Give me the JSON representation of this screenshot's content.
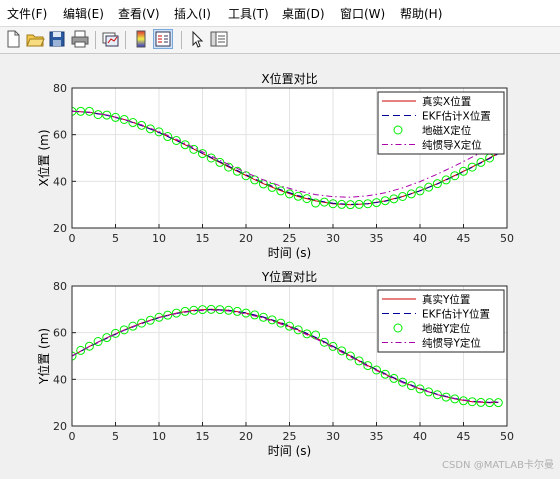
{
  "menu": [
    "文件(F)",
    "编辑(E)",
    "查看(V)",
    "插入(I)",
    "工具(T)",
    "桌面(D)",
    "窗口(W)",
    "帮助(H)"
  ],
  "toolbar_icons": [
    "new-file-icon",
    "open-folder-icon",
    "save-icon",
    "print-icon",
    "link-plot-icon",
    "colorbar-icon",
    "legend-icon",
    "pointer-icon",
    "property-editor-icon"
  ],
  "watermark": "CSDN @MATLAB卡尔曼",
  "chart_data": [
    {
      "type": "line",
      "title": "X位置对比",
      "xlabel": "时间 (s)",
      "ylabel": "X位置 (m)",
      "xlim": [
        0,
        50
      ],
      "ylim": [
        20,
        80
      ],
      "xticks": [
        0,
        5,
        10,
        15,
        20,
        25,
        30,
        35,
        40,
        45,
        50
      ],
      "yticks": [
        20,
        40,
        60,
        80
      ],
      "grid": true,
      "legend_position": "top-right",
      "colors": {
        "true": "#cc0000",
        "ekf": "#000099",
        "gps": "#00ee00",
        "ins": "#aa00aa"
      },
      "series": [
        {
          "name": "真实X位置",
          "style": "solid",
          "x": [
            0,
            2,
            4,
            6,
            8,
            10,
            12,
            14,
            16,
            18,
            20,
            22,
            24,
            26,
            28,
            30,
            32,
            34,
            36,
            38,
            40,
            42,
            44,
            46,
            48,
            49
          ],
          "y": [
            70,
            69.6,
            68.4,
            66.5,
            64,
            61,
            57.5,
            53.8,
            50,
            46.2,
            42.5,
            39,
            36,
            33.5,
            31.6,
            30.4,
            30,
            30.4,
            31.6,
            33.5,
            36,
            39,
            42.5,
            46.2,
            50,
            52
          ]
        },
        {
          "name": "EKF估计X位置",
          "style": "dashed",
          "x": [
            0,
            2,
            4,
            6,
            8,
            10,
            12,
            14,
            16,
            18,
            20,
            22,
            24,
            26,
            28,
            30,
            32,
            34,
            36,
            38,
            40,
            42,
            44,
            46,
            48,
            49
          ],
          "y": [
            70,
            69.5,
            68.3,
            66.4,
            63.9,
            60.9,
            57.5,
            53.9,
            50.2,
            46.5,
            42.8,
            39.4,
            36.4,
            33.9,
            31.9,
            30.6,
            30.1,
            30.4,
            31.5,
            33.4,
            35.9,
            38.9,
            42.3,
            46,
            49.8,
            51.8
          ]
        },
        {
          "name": "地磁X定位",
          "style": "markers",
          "x": [
            0,
            1,
            2,
            3,
            4,
            5,
            6,
            7,
            8,
            9,
            10,
            11,
            12,
            13,
            14,
            15,
            16,
            17,
            18,
            19,
            20,
            21,
            22,
            23,
            24,
            25,
            26,
            27,
            28,
            29,
            30,
            31,
            32,
            33,
            34,
            35,
            36,
            37,
            38,
            39,
            40,
            41,
            42,
            43,
            44,
            45,
            46,
            47,
            48,
            49
          ],
          "y": [
            70,
            70,
            70,
            68.6,
            68.4,
            67.4,
            66.5,
            65.2,
            64,
            62.5,
            61.2,
            59.2,
            57.5,
            55.7,
            53.7,
            51.9,
            50,
            48.1,
            46.1,
            44.3,
            42.4,
            40.6,
            38.9,
            37.4,
            35.9,
            34.6,
            33.6,
            32.6,
            30.7,
            31.1,
            30.4,
            30.1,
            30,
            30.1,
            30.4,
            30.9,
            31.7,
            32.5,
            33.5,
            34.6,
            35.9,
            37.5,
            39,
            40.6,
            42.4,
            44.3,
            46.1,
            48.1,
            50,
            54
          ]
        },
        {
          "name": "纯惯导X定位",
          "style": "dashdot",
          "x": [
            0,
            2,
            4,
            6,
            8,
            10,
            12,
            14,
            16,
            18,
            20,
            22,
            24,
            26,
            28,
            30,
            32,
            34,
            36,
            38,
            40,
            42,
            44,
            46,
            48,
            49
          ],
          "y": [
            70,
            69.6,
            68.5,
            66.6,
            64.2,
            61.3,
            58,
            54.5,
            50.8,
            47.2,
            43.8,
            40.6,
            38,
            35.9,
            34.3,
            33.4,
            33.2,
            33.8,
            35.1,
            37.2,
            39.9,
            43.1,
            46.6,
            50.4,
            54.2,
            56
          ]
        }
      ]
    },
    {
      "type": "line",
      "title": "Y位置对比",
      "xlabel": "时间 (s)",
      "ylabel": "Y位置 (m)",
      "xlim": [
        0,
        50
      ],
      "ylim": [
        20,
        80
      ],
      "xticks": [
        0,
        5,
        10,
        15,
        20,
        25,
        30,
        35,
        40,
        45,
        50
      ],
      "yticks": [
        20,
        40,
        60,
        80
      ],
      "grid": true,
      "legend_position": "top-right",
      "colors": {
        "true": "#cc0000",
        "ekf": "#000099",
        "gps": "#00ee00",
        "ins": "#aa00aa"
      },
      "series": [
        {
          "name": "真实Y位置",
          "style": "solid",
          "x": [
            0,
            2,
            4,
            6,
            8,
            10,
            12,
            14,
            16,
            18,
            20,
            22,
            24,
            26,
            28,
            30,
            32,
            34,
            36,
            38,
            40,
            42,
            44,
            46,
            48,
            49
          ],
          "y": [
            50,
            54.1,
            57.8,
            61.2,
            64.1,
            66.6,
            68.4,
            69.6,
            70,
            69.6,
            68.4,
            66.6,
            64.1,
            61.2,
            57.8,
            54.1,
            50,
            45.9,
            42.2,
            38.8,
            35.9,
            33.4,
            31.6,
            30.4,
            30,
            30.1
          ]
        },
        {
          "name": "EKF估计Y位置",
          "style": "dashed",
          "x": [
            0,
            2,
            4,
            6,
            8,
            10,
            12,
            14,
            16,
            18,
            20,
            22,
            24,
            26,
            28,
            30,
            32,
            34,
            36,
            38,
            40,
            42,
            44,
            46,
            48,
            49
          ],
          "y": [
            50,
            54,
            57.6,
            61,
            63.9,
            66.4,
            68.2,
            69.4,
            69.9,
            69.6,
            68.5,
            66.7,
            64.3,
            61.4,
            58,
            54.2,
            50.2,
            46.1,
            42.4,
            39,
            36.1,
            33.6,
            31.8,
            30.6,
            30.1,
            30.2
          ]
        },
        {
          "name": "地磁Y定位",
          "style": "markers",
          "x": [
            0,
            1,
            2,
            3,
            4,
            5,
            6,
            7,
            8,
            9,
            10,
            11,
            12,
            13,
            14,
            15,
            16,
            17,
            18,
            19,
            20,
            21,
            22,
            23,
            24,
            25,
            26,
            27,
            28,
            29,
            30,
            31,
            32,
            33,
            34,
            35,
            36,
            37,
            38,
            39,
            40,
            41,
            42,
            43,
            44,
            45,
            46,
            47,
            48,
            49
          ],
          "y": [
            50,
            52.4,
            54.2,
            56.2,
            57.9,
            59.7,
            61.2,
            62.8,
            64.1,
            65.3,
            66.6,
            67.5,
            68.4,
            69.1,
            69.6,
            69.9,
            70,
            69.9,
            69.6,
            69.1,
            68.4,
            67.6,
            66.6,
            65.5,
            64.1,
            62.8,
            61.2,
            59.5,
            59,
            55.9,
            54.1,
            52.2,
            50,
            47.9,
            45.9,
            44,
            42.2,
            40.4,
            38.8,
            37.3,
            35.9,
            34.6,
            33.4,
            32.4,
            31.6,
            30.8,
            30.4,
            30.1,
            30,
            30
          ]
        },
        {
          "name": "纯惯导Y定位",
          "style": "dashdot",
          "x": [
            0,
            2,
            4,
            6,
            8,
            10,
            12,
            14,
            16,
            18,
            20,
            22,
            24,
            26,
            28,
            30,
            32,
            34,
            36,
            38,
            40,
            42,
            44,
            46,
            48,
            49
          ],
          "y": [
            50,
            54.1,
            57.8,
            61.1,
            64,
            66.4,
            68.2,
            69.3,
            69.7,
            69.3,
            68.1,
            66.2,
            63.7,
            60.8,
            57.4,
            53.6,
            49.6,
            45.6,
            41.9,
            38.6,
            35.8,
            33.4,
            31.7,
            30.6,
            30.2,
            30.4
          ]
        }
      ]
    }
  ]
}
